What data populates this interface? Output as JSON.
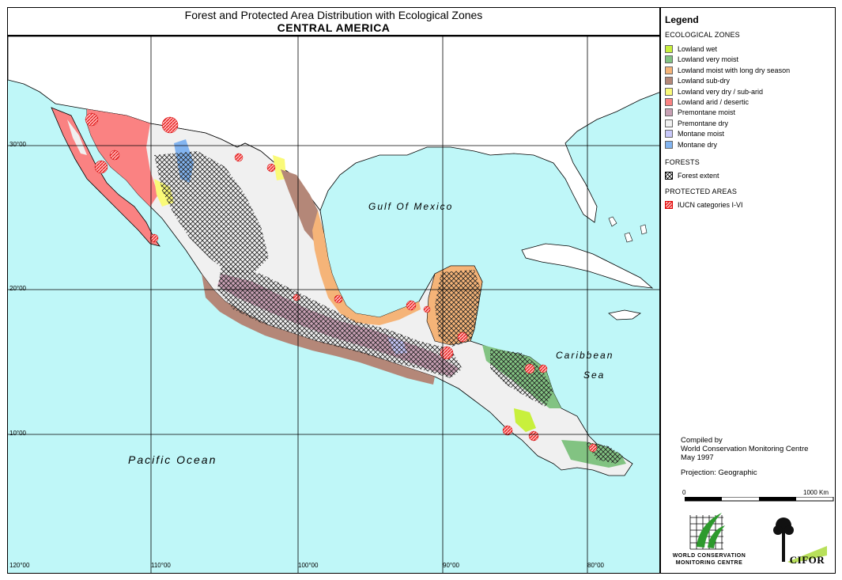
{
  "title": {
    "line1": "Forest and Protected Area Distribution with Ecological Zones",
    "line2": "CENTRAL AMERICA"
  },
  "map": {
    "ocean_color": "#bff7f8",
    "labels": {
      "gulf": "Gulf Of Mexico",
      "pacific": "Pacific Ocean",
      "caribbean_1": "Caribbean",
      "caribbean_2": "Sea"
    },
    "lat_labels": [
      "30°00",
      "20°00",
      "10°00"
    ],
    "lon_labels": [
      "120°00",
      "110°00",
      "100°00",
      "90°00",
      "80°00"
    ]
  },
  "legend": {
    "title": "Legend",
    "eco_heading": "ECOLOGICAL ZONES",
    "eco_zones": [
      {
        "label": "Lowland wet",
        "color": "#c8f03c"
      },
      {
        "label": "Lowland very moist",
        "color": "#82c382"
      },
      {
        "label": "Lowland moist with long dry season",
        "color": "#f5b478"
      },
      {
        "label": "Lowland sub-dry",
        "color": "#b48778"
      },
      {
        "label": "Lowland very dry / sub-arid",
        "color": "#fafa78"
      },
      {
        "label": "Lowland arid / desertic",
        "color": "#fa8282"
      },
      {
        "label": "Premontane moist",
        "color": "#c8a0b4"
      },
      {
        "label": "Premontane dry",
        "color": "#f0f0f0"
      },
      {
        "label": "Montane moist",
        "color": "#c8c8fa"
      },
      {
        "label": "Montane dry",
        "color": "#82b4f0"
      }
    ],
    "forest_heading": "FORESTS",
    "forest_label": "Forest extent",
    "protected_heading": "PROTECTED AREAS",
    "protected_label": "IUCN categories I-VI"
  },
  "credits": {
    "line1": "Compiled by",
    "line2": "World Conservation Monitoring Centre",
    "line3": "May 1997",
    "projection": "Projection: Geographic"
  },
  "scale": {
    "start": "0",
    "end": "1000 Km"
  },
  "logos": {
    "wcmc_line1": "WORLD CONSERVATION",
    "wcmc_line2": "MONITORING CENTRE",
    "cifor": "CIFOR"
  }
}
